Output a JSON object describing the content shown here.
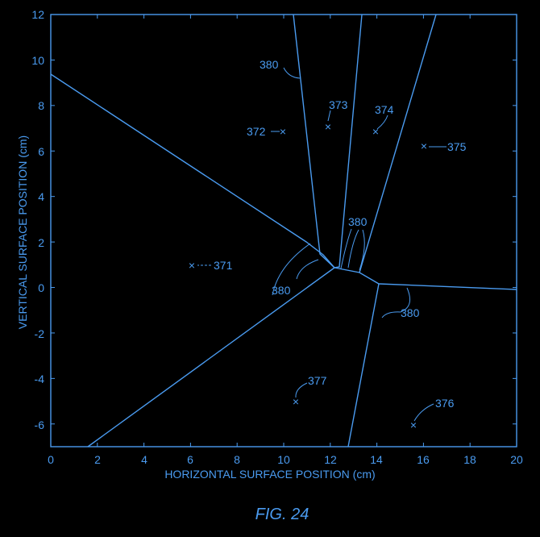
{
  "figure": {
    "caption": "FIG. 24",
    "xlabel": "HORIZONTAL SURFACE POSITION (cm)",
    "ylabel": "VERTICAL SURFACE POSITION (cm)",
    "xticks": [
      "0",
      "2",
      "4",
      "6",
      "8",
      "10",
      "12",
      "14",
      "16",
      "18",
      "20"
    ],
    "yticks": [
      "12",
      "10",
      "8",
      "6",
      "4",
      "2",
      "0",
      "-2",
      "-4",
      "-6"
    ],
    "colors": {
      "line": "#4a9bf0",
      "background": "#000000"
    }
  },
  "chart_data": {
    "type": "voronoi",
    "xlim": [
      0,
      20
    ],
    "ylim": [
      -7,
      12
    ],
    "sites": [
      {
        "label": "371",
        "x": 6.0,
        "y": 1.0
      },
      {
        "label": "372",
        "x": 10.0,
        "y": 6.8
      },
      {
        "label": "373",
        "x": 11.9,
        "y": 7.0
      },
      {
        "label": "374",
        "x": 13.9,
        "y": 6.8
      },
      {
        "label": "375",
        "x": 16.0,
        "y": 6.2
      },
      {
        "label": "376",
        "x": 15.5,
        "y": -6.0
      },
      {
        "label": "377",
        "x": 10.5,
        "y": -5.0
      }
    ],
    "boundary_label": "380"
  }
}
